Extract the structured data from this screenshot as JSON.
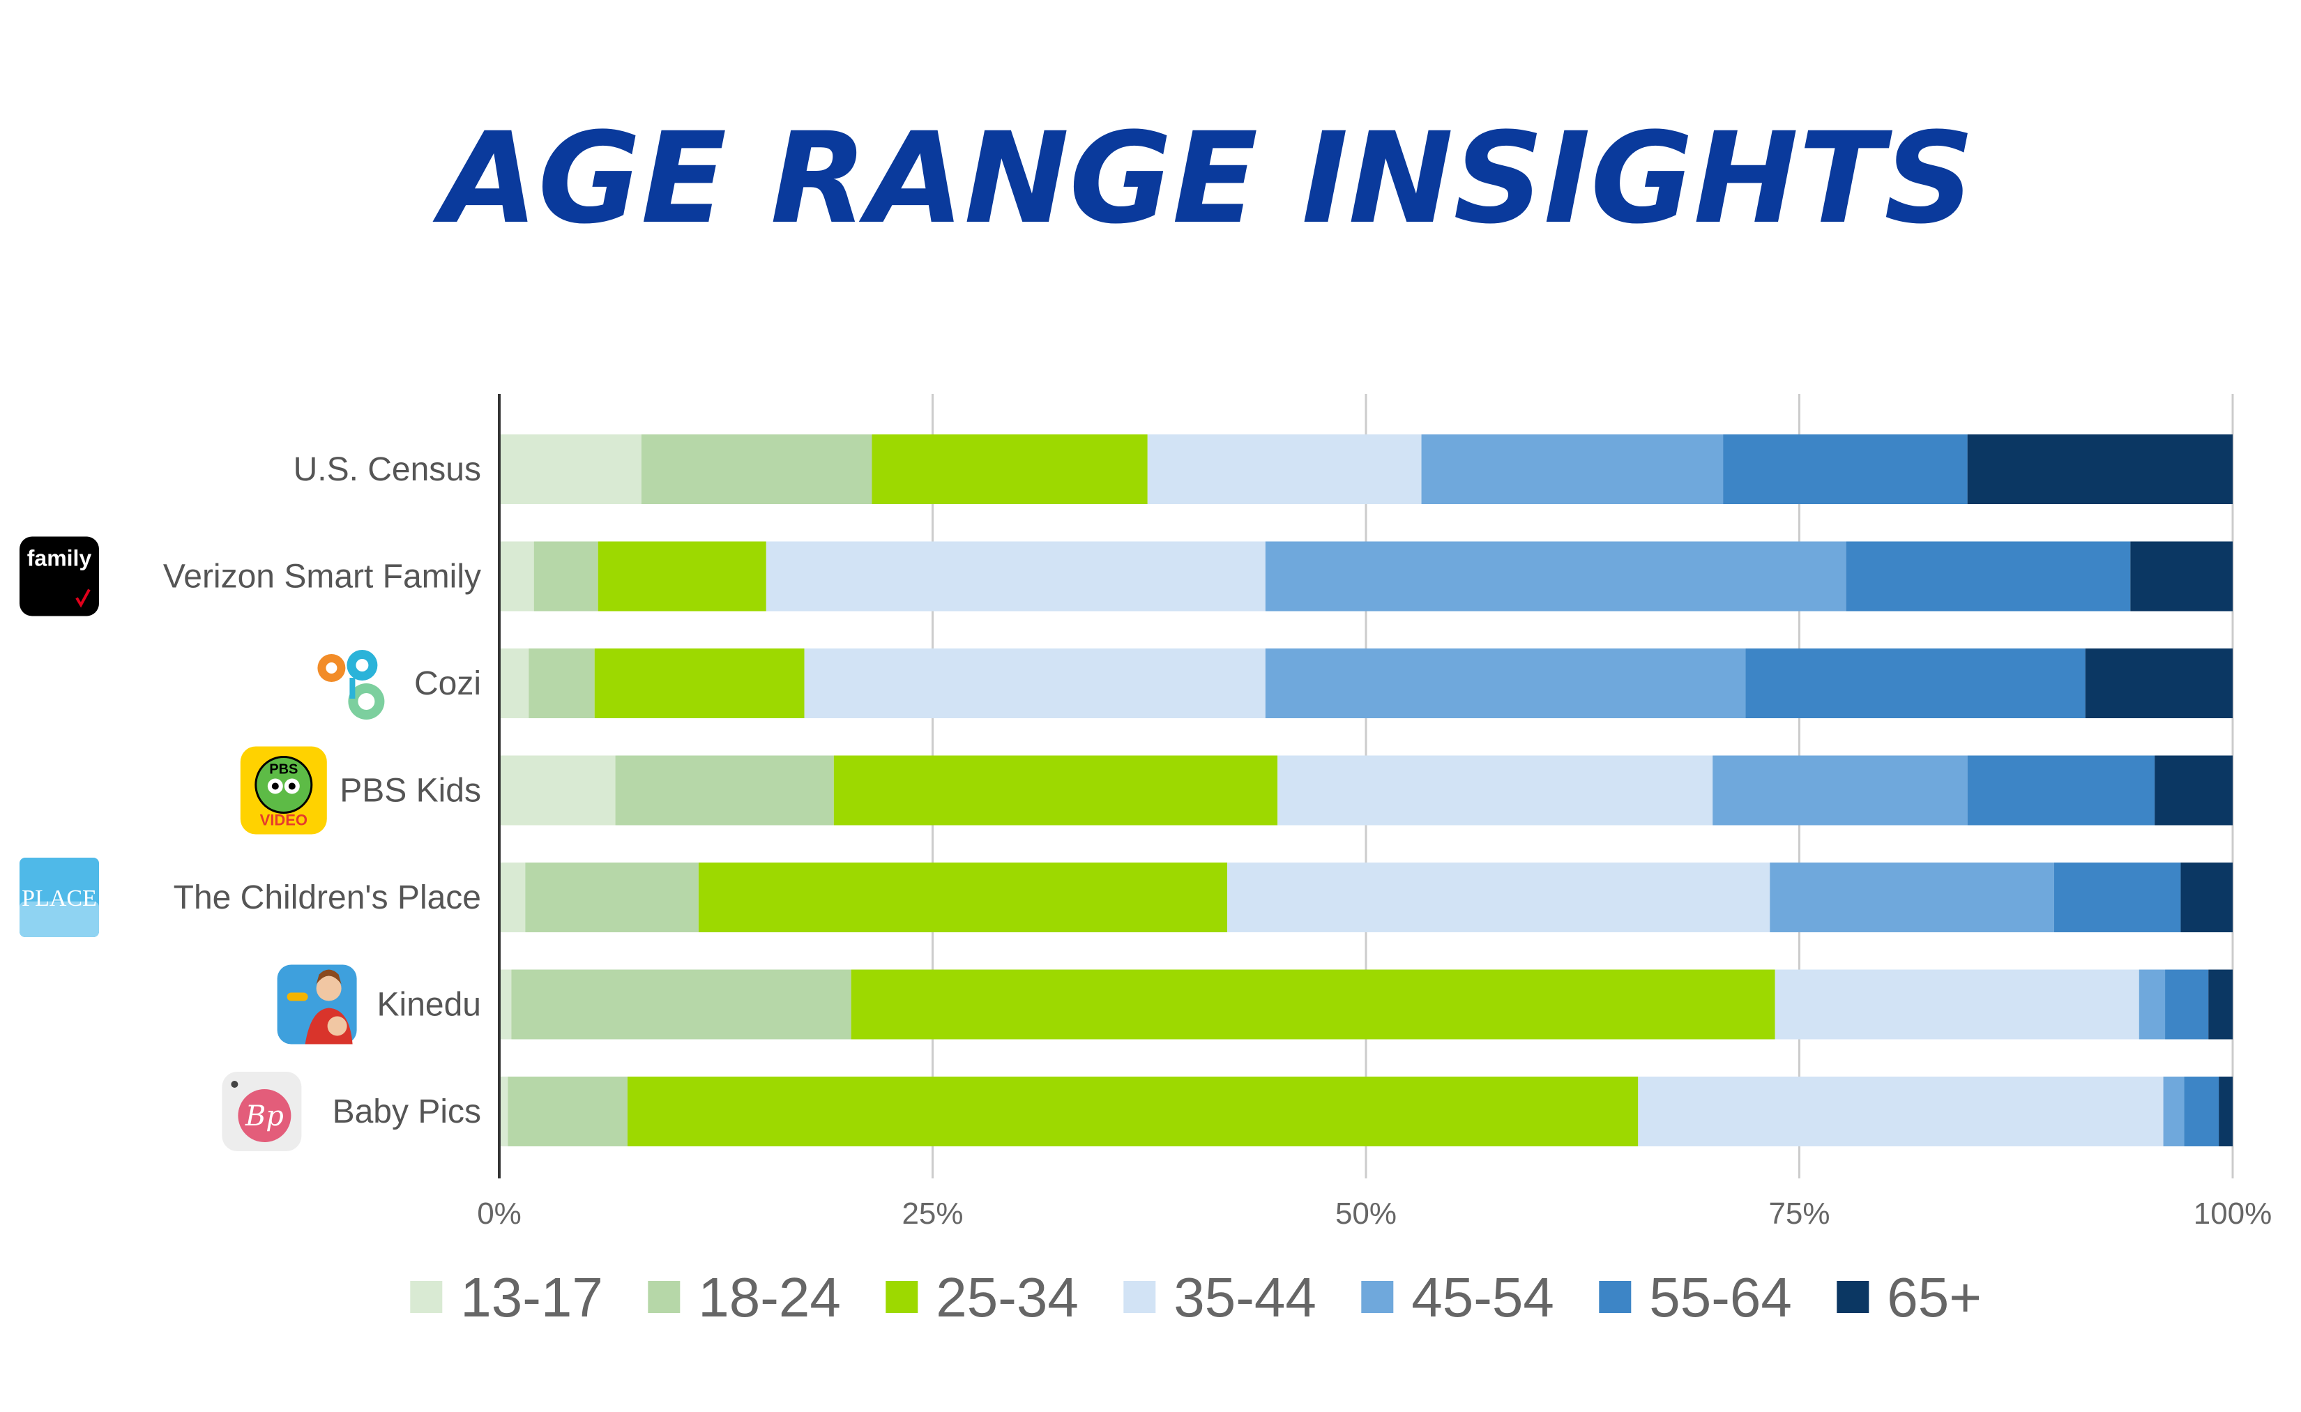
{
  "chart_data": {
    "type": "bar",
    "orientation": "horizontal",
    "stacked": true,
    "title": "AGE RANGE INSIGHTS",
    "categories": [
      {
        "label": "U.S. Census",
        "icon": null
      },
      {
        "label": "Verizon Smart Family",
        "icon": "verizon-family-icon",
        "icon_text": "family"
      },
      {
        "label": "Cozi",
        "icon": "cozi-icon"
      },
      {
        "label": "PBS Kids",
        "icon": "pbs-kids-icon",
        "icon_text": "PBS",
        "icon_subtext": "VIDEO"
      },
      {
        "label": "The Children's Place",
        "icon": "childrens-place-icon",
        "icon_text": "PLACE"
      },
      {
        "label": "Kinedu",
        "icon": "kinedu-icon"
      },
      {
        "label": "Baby Pics",
        "icon": "baby-pics-icon",
        "icon_text": "Bp"
      }
    ],
    "series": [
      {
        "name": "13-17",
        "color": "#d9ead3",
        "values": [
          8.2,
          2.0,
          1.7,
          6.7,
          1.5,
          0.7,
          0.5
        ]
      },
      {
        "name": "18-24",
        "color": "#b6d7a8",
        "values": [
          13.3,
          3.7,
          3.8,
          12.6,
          10.0,
          19.6,
          6.9
        ]
      },
      {
        "name": "25-34",
        "color": "#9dd900",
        "values": [
          15.9,
          9.7,
          12.1,
          25.6,
          30.5,
          53.3,
          58.3
        ]
      },
      {
        "name": "35-44",
        "color": "#d2e3f5",
        "values": [
          15.8,
          28.8,
          26.6,
          25.1,
          31.3,
          21.0,
          30.3
        ]
      },
      {
        "name": "45-54",
        "color": "#6fa8dc",
        "values": [
          17.4,
          33.5,
          27.7,
          14.7,
          16.4,
          1.5,
          1.2
        ]
      },
      {
        "name": "55-64",
        "color": "#3d85c6",
        "values": [
          14.1,
          16.4,
          19.6,
          10.8,
          7.3,
          2.5,
          2.0
        ]
      },
      {
        "name": "65+",
        "color": "#0b3763",
        "values": [
          15.3,
          5.9,
          8.5,
          4.5,
          3.0,
          1.4,
          0.8
        ]
      }
    ],
    "xlim": [
      0,
      100
    ],
    "xticks": [
      "0%",
      "25%",
      "50%",
      "75%",
      "100%"
    ],
    "grid": true,
    "legend": "bottom"
  }
}
